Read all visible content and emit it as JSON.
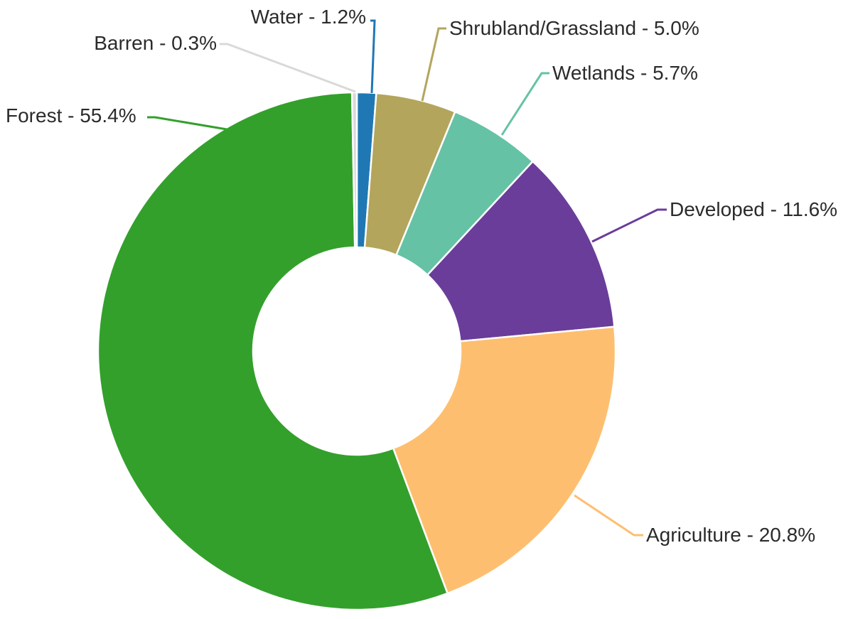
{
  "chart_data": {
    "type": "pie",
    "variant": "donut",
    "slices": [
      {
        "id": "water",
        "label": "Water - 1.2%",
        "category": "Water",
        "value": 1.2,
        "color": "#1f78b4"
      },
      {
        "id": "shrubland",
        "label": "Shrubland/Grassland - 5.0%",
        "category": "Shrubland/Grassland",
        "value": 5.0,
        "color": "#b3a55c"
      },
      {
        "id": "wetlands",
        "label": "Wetlands - 5.7%",
        "category": "Wetlands",
        "value": 5.7,
        "color": "#66c2a5"
      },
      {
        "id": "developed",
        "label": "Developed - 11.6%",
        "category": "Developed",
        "value": 11.6,
        "color": "#6a3d9a"
      },
      {
        "id": "agriculture",
        "label": "Agriculture - 20.8%",
        "category": "Agriculture",
        "value": 20.8,
        "color": "#fdbf6f"
      },
      {
        "id": "forest",
        "label": "Forest - 55.4%",
        "category": "Forest",
        "value": 55.4,
        "color": "#33a02c"
      },
      {
        "id": "barren",
        "label": "Barren - 0.3%",
        "category": "Barren",
        "value": 0.3,
        "color": "#d9d9d9"
      }
    ],
    "start_angle": "top",
    "direction": "clockwise",
    "label_color": "#2b2b2b",
    "legend": "none"
  }
}
